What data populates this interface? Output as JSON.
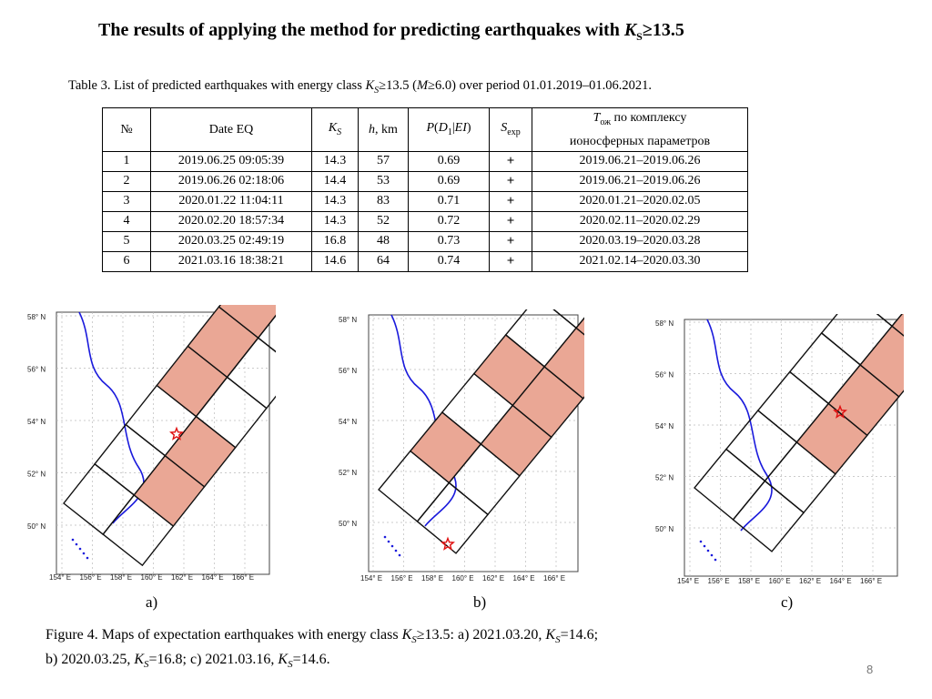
{
  "title": {
    "prefix": "The results of applying the method for predicting earthquakes with ",
    "var": "K",
    "sub": "S",
    "suffix": "≥13.5"
  },
  "table_caption": {
    "t1": "Table 3. List of predicted earthquakes with energy class ",
    "var": "K",
    "sub": "S",
    "t2": "≥13.5 (",
    "m": "M",
    "t3": "≥6.0) over period 01.01.2019–01.06.2021."
  },
  "table": {
    "headers": {
      "no": "№",
      "date": "Date EQ",
      "ks_var": "K",
      "ks_sub": "S",
      "h_var": "h",
      "h_unit": ", km",
      "p_open": "P",
      "p_inner": "(D",
      "p_inner_sub": "1",
      "p_bar": "|EI",
      "p_close": ")",
      "s_var": "S",
      "s_sub": "exp",
      "t_var": "T",
      "t_sub": "ож",
      "t_line1": " по комплексу",
      "t_line2": "ионосферных параметров"
    },
    "rows": [
      {
        "no": "1",
        "date": "2019.06.25 09:05:39",
        "ks": "14.3",
        "h": "57",
        "p": "0.69",
        "s": "+",
        "t": "2019.06.21–2019.06.26"
      },
      {
        "no": "2",
        "date": "2019.06.26 02:18:06",
        "ks": "14.4",
        "h": "53",
        "p": "0.69",
        "s": "+",
        "t": "2019.06.21–2019.06.26"
      },
      {
        "no": "3",
        "date": "2020.01.22 11:04:11",
        "ks": "14.3",
        "h": "83",
        "p": "0.71",
        "s": "+",
        "t": "2020.01.21–2020.02.05"
      },
      {
        "no": "4",
        "date": "2020.02.20 18:57:34",
        "ks": "14.3",
        "h": "52",
        "p": "0.72",
        "s": "+",
        "t": "2020.02.11–2020.02.29"
      },
      {
        "no": "5",
        "date": "2020.03.25 02:49:19",
        "ks": "16.8",
        "h": "48",
        "p": "0.73",
        "s": "+",
        "t": "2020.03.19–2020.03.28"
      },
      {
        "no": "6",
        "date": "2021.03.16 18:38:21",
        "ks": "14.6",
        "h": "64",
        "p": "0.74",
        "s": "+",
        "t": "2021.02.14–2020.03.30"
      }
    ]
  },
  "maps": {
    "lat_labels": [
      "58° N",
      "56° N",
      "54° N",
      "52° N",
      "50° N"
    ],
    "lon_labels": [
      "154° E",
      "156° E",
      "158° E",
      "160° E",
      "162° E",
      "164° E",
      "166° E"
    ],
    "panel_labels": [
      "a)",
      "b)",
      "c)"
    ],
    "highlight_color": "#eaa795",
    "coast_color": "#1a1adc",
    "star_color": "#e01010"
  },
  "figure_caption": {
    "l1a": "Figure  4. Maps of expectation earthquakes with energy class ",
    "l1b": "≥13.5: a) 2021.03.20, ",
    "l1c": "=14.6;",
    "l2a": " b) 2020.03.25, ",
    "l2b": "=16.8;  c) 2021.03.16, ",
    "l2c": "=14.6.",
    "var": "K",
    "sub": "S"
  },
  "page_number": "8"
}
